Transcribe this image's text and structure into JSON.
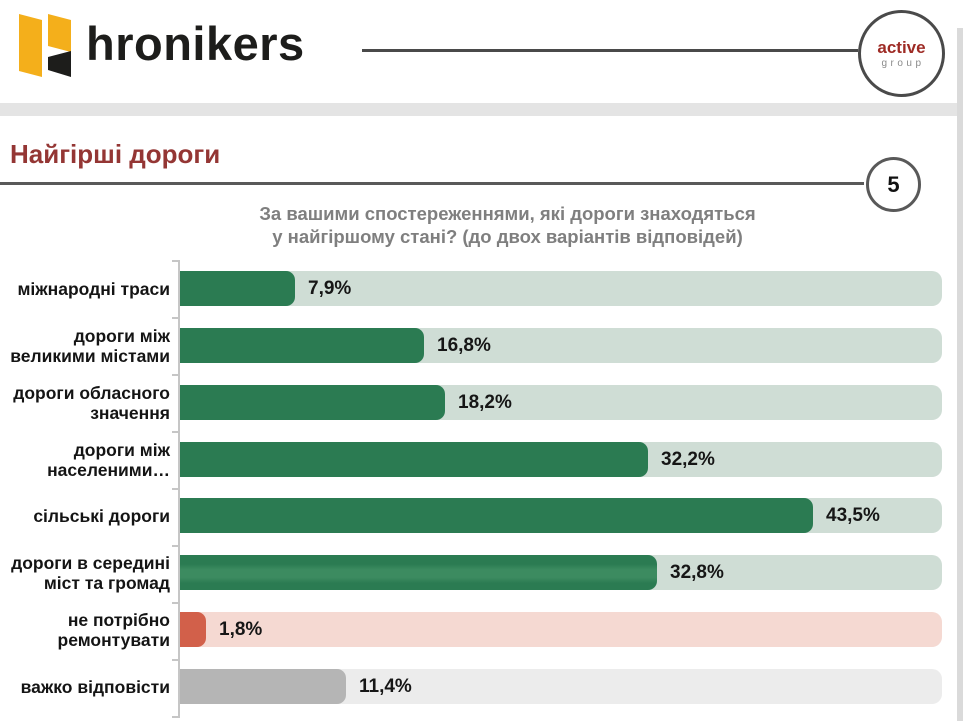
{
  "header": {
    "brand": "hronikers",
    "partner": {
      "line1": "active",
      "line2": "group"
    }
  },
  "slide": {
    "title": "Найгірші дороги",
    "page_number": "5"
  },
  "chart_data": {
    "type": "bar",
    "orientation": "horizontal",
    "title": "За вашими спостереженнями, які дороги знаходяться у найгіршому стані? (до двох варіантів відповідей)",
    "title_lines": [
      "За вашими спостереженнями, які дороги знаходяться",
      "у найгіршому стані? (до двох варіантів відповідей)"
    ],
    "categories": [
      "міжнародні траси",
      "дороги між\nвеликими містами",
      "дороги обласного\nзначення",
      "дороги між\nнаселеними…",
      "сільські дороги",
      "дороги в середині\nміст та громад",
      "не потрібно\nремонтувати",
      "важко відповісти"
    ],
    "values": [
      7.9,
      16.8,
      18.2,
      32.2,
      43.5,
      32.8,
      1.8,
      11.4
    ],
    "rows": [
      {
        "label": "міжнародні траси",
        "value": 7.9,
        "display": "7,9%",
        "variant": "green"
      },
      {
        "label": "дороги між\nвеликими містами",
        "value": 16.8,
        "display": "16,8%",
        "variant": "green"
      },
      {
        "label": "дороги обласного\nзначення",
        "value": 18.2,
        "display": "18,2%",
        "variant": "green"
      },
      {
        "label": "дороги між\nнаселеними…",
        "value": 32.2,
        "display": "32,2%",
        "variant": "green"
      },
      {
        "label": "сільські дороги",
        "value": 43.5,
        "display": "43,5%",
        "variant": "green"
      },
      {
        "label": "дороги в середині\nміст та громад",
        "value": 32.8,
        "display": "32,8%",
        "variant": "green-highlight"
      },
      {
        "label": "не потрібно\nремонтувати",
        "value": 1.8,
        "display": "1,8%",
        "variant": "red"
      },
      {
        "label": "важко відповісти",
        "value": 11.4,
        "display": "11,4%",
        "variant": "gray"
      }
    ],
    "xlim": [
      0,
      52.4
    ],
    "grid": false,
    "legend": false,
    "colors": {
      "bar_green": "#2b7b52",
      "bar_green_highlight": "#3c8b60",
      "track_green": "#cfddd5",
      "bar_red": "#d2604a",
      "track_red": "#f5d9d2",
      "bar_gray": "#b5b5b5",
      "track_gray": "#ececec",
      "title_red": "#943634",
      "subtitle_gray": "#7f7f7f",
      "brand_yellow": "#f4af1b",
      "brand_black": "#1d1d1b",
      "active_red": "#9e2b25"
    }
  }
}
